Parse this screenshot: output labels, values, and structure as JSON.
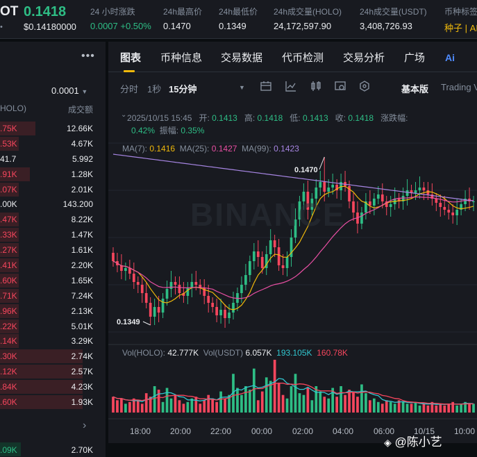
{
  "ticker": {
    "pair_tail": "OT",
    "last_price": "0.1418",
    "last_price_usd": "$0.14180000",
    "stats": [
      {
        "label": "24 小时涨跌",
        "value": "0.0007 +0.50%",
        "style": "green"
      },
      {
        "label": "24h最高价",
        "value": "0.1470",
        "style": "white"
      },
      {
        "label": "24h最低价",
        "value": "0.1349",
        "style": "white"
      },
      {
        "label": "24h成交量(HOLO)",
        "value": "24,172,597.90",
        "style": "white"
      },
      {
        "label": "24h成交量(USDT)",
        "value": "3,408,726.93",
        "style": "white"
      },
      {
        "label": "币种标签",
        "value": "种子 | AI",
        "style": "gold"
      }
    ]
  },
  "orderbook": {
    "precision": "0.0001",
    "col_price": "HOLO)",
    "col_amount": "成交额",
    "asks": [
      {
        "price": ".75K",
        "amount": "12.66K",
        "depth": 0.38
      },
      {
        "price": ".53K",
        "amount": "4.67K",
        "depth": 0.2
      },
      {
        "price": "41.7",
        "amount": "5.992",
        "depth": 0.0
      },
      {
        "price": ".91K",
        "amount": "1.28K",
        "depth": 0.32
      },
      {
        "price": ".07K",
        "amount": "2.01K",
        "depth": 0.2
      },
      {
        "price": ".00K",
        "amount": "143.200",
        "depth": 0.0
      },
      {
        "price": ".47K",
        "amount": "8.22K",
        "depth": 0.2
      },
      {
        "price": ".33K",
        "amount": "1.47K",
        "depth": 0.2
      },
      {
        "price": ".27K",
        "amount": "1.61K",
        "depth": 0.2
      },
      {
        "price": ".41K",
        "amount": "2.20K",
        "depth": 0.2
      },
      {
        "price": ".60K",
        "amount": "1.65K",
        "depth": 0.2
      },
      {
        "price": ".71K",
        "amount": "7.24K",
        "depth": 0.2
      },
      {
        "price": ".96K",
        "amount": "2.13K",
        "depth": 0.2
      },
      {
        "price": ".22K",
        "amount": "5.01K",
        "depth": 0.2
      },
      {
        "price": ".14K",
        "amount": "3.29K",
        "depth": 0.2
      },
      {
        "price": ".30K",
        "amount": "2.74K",
        "depth": 0.88
      },
      {
        "price": ".12K",
        "amount": "2.57K",
        "depth": 0.88
      },
      {
        "price": ".84K",
        "amount": "4.23K",
        "depth": 0.88
      },
      {
        "price": ".60K",
        "amount": "1.93K",
        "depth": 0.88
      }
    ],
    "last_trade": {
      "price": ".09K",
      "amount": "2.70K"
    }
  },
  "tabs": [
    "图表",
    "币种信息",
    "交易数据",
    "代币检测",
    "交易分析",
    "广场"
  ],
  "ai_label": "Ai",
  "toolbar": {
    "time_label": "分时",
    "interval_1s": "1秒",
    "interval_15m": "15分钟",
    "basic": "基本版",
    "tradingview": "Trading V"
  },
  "candle_info": {
    "datetime": "2025/10/15 15:45",
    "open_label": "开:",
    "open": "0.1413",
    "high_label": "高:",
    "high": "0.1418",
    "low_label": "低:",
    "low": "0.1413",
    "close_label": "收:",
    "close": "0.1418",
    "change_label": "涨跌幅:",
    "change": "0.42%",
    "amplitude_label": "振幅:",
    "amplitude": "0.35%"
  },
  "ma": {
    "ma7_label": "MA(7):",
    "ma7": "0.1416",
    "ma25_label": "MA(25):",
    "ma25": "0.1427",
    "ma99_label": "MA(99):",
    "ma99": "0.1423"
  },
  "volume": {
    "holo_label": "Vol(HOLO):",
    "holo": "42.777K",
    "usdt_label": "Vol(USDT)",
    "usdt": "6.057K",
    "ma1": "193.105K",
    "ma2": "160.78K"
  },
  "hi_marker": "0.1470",
  "lo_marker": "0.1349",
  "watermark": "BINANCE",
  "time_axis": [
    "18:00",
    "20:00",
    "22:00",
    "00:00",
    "02:00",
    "04:00",
    "06:00",
    "10/15",
    "10:00"
  ],
  "credit": "@陈小艺",
  "colors": {
    "up": "#2ebd85",
    "down": "#f6465d",
    "ma7": "#f0b90b",
    "ma25": "#e84fa3",
    "ma99": "#a685e2",
    "bg": "#181a20"
  },
  "chart_data": {
    "type": "candlestick",
    "interval": "15分钟",
    "price_range": [
      0.134,
      0.1475
    ],
    "high": 0.147,
    "low": 0.1349,
    "closes": [
      0.1395,
      0.1392,
      0.1388,
      0.139,
      0.1386,
      0.138,
      0.1378,
      0.1372,
      0.1365,
      0.1355,
      0.1362,
      0.1358,
      0.1368,
      0.1375,
      0.138,
      0.1378,
      0.1372,
      0.137,
      0.1376,
      0.138,
      0.1378,
      0.1376,
      0.137,
      0.1365,
      0.1362,
      0.1356,
      0.136,
      0.1354,
      0.1358,
      0.1365,
      0.1372,
      0.1378,
      0.1385,
      0.1395,
      0.1402,
      0.1398,
      0.139,
      0.14,
      0.141,
      0.1405,
      0.1392,
      0.139,
      0.1398,
      0.1412,
      0.1425,
      0.1438,
      0.1445,
      0.1432,
      0.144,
      0.1448,
      0.1452,
      0.1445,
      0.1448,
      0.145,
      0.1446,
      0.1452,
      0.1449,
      0.1438,
      0.143,
      0.1422,
      0.143,
      0.1438,
      0.1435,
      0.144,
      0.1443,
      0.1438,
      0.1434,
      0.1436,
      0.144,
      0.1438,
      0.1442,
      0.1446,
      0.1444,
      0.1446,
      0.1448,
      0.1446,
      0.1443,
      0.144,
      0.1437,
      0.1434,
      0.1432,
      0.143,
      0.1428,
      0.1432,
      0.1436,
      0.144,
      0.1438,
      0.1438
    ],
    "volumes": [
      18,
      14,
      16,
      10,
      12,
      16,
      14,
      10,
      22,
      18,
      30,
      26,
      12,
      28,
      16,
      20,
      14,
      10,
      12,
      16,
      18,
      10,
      14,
      20,
      16,
      12,
      24,
      16,
      20,
      44,
      28,
      20,
      30,
      26,
      50,
      14,
      24,
      40,
      36,
      60,
      34,
      20,
      16,
      30,
      44,
      22,
      20,
      28,
      14,
      30,
      24,
      18,
      16,
      28,
      18,
      30,
      20,
      26,
      24,
      18,
      32,
      22,
      14,
      16,
      12,
      10,
      14,
      12,
      10,
      14,
      12,
      10,
      10,
      12,
      8,
      10,
      8,
      12,
      8,
      10,
      8,
      10,
      12,
      8,
      10,
      12,
      10,
      10
    ]
  }
}
